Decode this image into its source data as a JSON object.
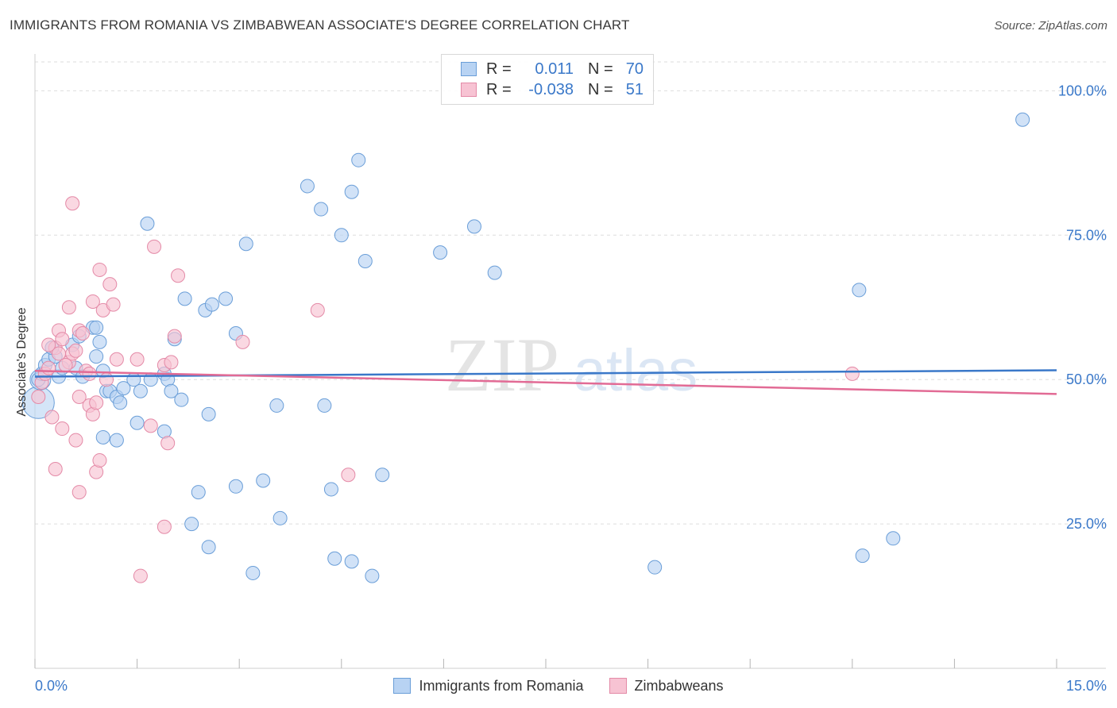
{
  "header": {
    "title": "IMMIGRANTS FROM ROMANIA VS ZIMBABWEAN ASSOCIATE'S DEGREE CORRELATION CHART",
    "source": "Source: ZipAtlas.com"
  },
  "colors": {
    "blue_fill": "#b8d3f3",
    "blue_stroke": "#6a9ed8",
    "blue_line": "#3a78c9",
    "pink_fill": "#f7c3d3",
    "pink_stroke": "#e48aa7",
    "pink_line": "#e26b95",
    "axis_text": "#3a78c9",
    "grid": "#dedede"
  },
  "stats": {
    "r_label": "R =",
    "n_label": "N =",
    "rows": [
      {
        "r": "0.011",
        "n": "70"
      },
      {
        "r": "-0.038",
        "n": "51"
      }
    ]
  },
  "watermark": {
    "zip": "ZIP",
    "atlas": "atlas"
  },
  "chart_data": {
    "type": "scatter",
    "title": "IMMIGRANTS FROM ROMANIA VS ZIMBABWEAN ASSOCIATE'S DEGREE CORRELATION CHART",
    "xlabel": "",
    "ylabel": "Associate's Degree",
    "xlim": [
      0,
      15
    ],
    "ylim": [
      0,
      105
    ],
    "x_tick_labels": [
      "0.0%",
      "15.0%"
    ],
    "y_ticks": [
      25,
      50,
      75,
      100
    ],
    "y_tick_labels": [
      "25.0%",
      "50.0%",
      "75.0%",
      "100.0%"
    ],
    "grid": true,
    "legend": [
      "Immigrants from Romania",
      "Zimbabweans"
    ],
    "series": [
      {
        "name": "Immigrants from Romania",
        "trend": {
          "x": [
            0,
            15
          ],
          "y": [
            50.5,
            51.6
          ]
        },
        "points": [
          [
            0.05,
            50.0
          ],
          [
            0.1,
            51.0
          ],
          [
            0.15,
            52.5
          ],
          [
            0.2,
            53.5
          ],
          [
            0.3,
            54.0
          ],
          [
            0.35,
            50.5
          ],
          [
            0.4,
            52.0
          ],
          [
            0.55,
            56.0
          ],
          [
            0.6,
            52.0
          ],
          [
            0.7,
            50.5
          ],
          [
            0.65,
            57.5
          ],
          [
            0.85,
            59.0
          ],
          [
            0.9,
            54.0
          ],
          [
            0.95,
            56.5
          ],
          [
            1.0,
            51.5
          ],
          [
            1.05,
            48.0
          ],
          [
            1.1,
            48.0
          ],
          [
            1.2,
            47.0
          ],
          [
            1.25,
            46.0
          ],
          [
            1.3,
            48.5
          ],
          [
            1.45,
            50.0
          ],
          [
            1.55,
            48.0
          ],
          [
            1.7,
            50.0
          ],
          [
            1.9,
            51.0
          ],
          [
            1.95,
            50.0
          ],
          [
            2.0,
            48.0
          ],
          [
            2.05,
            57.0
          ],
          [
            2.15,
            46.5
          ],
          [
            1.0,
            40.0
          ],
          [
            1.2,
            39.5
          ],
          [
            1.5,
            42.5
          ],
          [
            1.9,
            41.0
          ],
          [
            1.65,
            77.0
          ],
          [
            2.2,
            64.0
          ],
          [
            2.5,
            62.0
          ],
          [
            2.6,
            63.0
          ],
          [
            2.8,
            64.0
          ],
          [
            2.95,
            58.0
          ],
          [
            3.1,
            73.5
          ],
          [
            4.0,
            83.5
          ],
          [
            4.2,
            79.5
          ],
          [
            4.5,
            75.0
          ],
          [
            4.65,
            82.5
          ],
          [
            4.75,
            88.0
          ],
          [
            4.85,
            70.5
          ],
          [
            5.95,
            72.0
          ],
          [
            6.45,
            76.5
          ],
          [
            6.75,
            68.5
          ],
          [
            2.55,
            44.0
          ],
          [
            3.55,
            45.5
          ],
          [
            4.25,
            45.5
          ],
          [
            2.4,
            30.5
          ],
          [
            2.95,
            31.5
          ],
          [
            3.35,
            32.5
          ],
          [
            4.35,
            31.0
          ],
          [
            5.1,
            33.5
          ],
          [
            3.6,
            26.0
          ],
          [
            2.3,
            25.0
          ],
          [
            2.55,
            21.0
          ],
          [
            3.2,
            16.5
          ],
          [
            4.4,
            19.0
          ],
          [
            4.65,
            18.5
          ],
          [
            4.95,
            16.0
          ],
          [
            9.1,
            17.5
          ],
          [
            12.1,
            65.5
          ],
          [
            12.15,
            19.5
          ],
          [
            12.6,
            22.5
          ],
          [
            14.5,
            95.0
          ],
          [
            0.9,
            59.0
          ],
          [
            0.25,
            55.5
          ]
        ]
      },
      {
        "name": "Zimbabweans",
        "trend": {
          "x": [
            0,
            15
          ],
          "y": [
            51.5,
            47.5
          ]
        },
        "points": [
          [
            0.05,
            47.0
          ],
          [
            0.1,
            49.5
          ],
          [
            0.15,
            51.0
          ],
          [
            0.2,
            52.0
          ],
          [
            0.3,
            55.5
          ],
          [
            0.35,
            58.5
          ],
          [
            0.4,
            57.0
          ],
          [
            0.5,
            53.0
          ],
          [
            0.55,
            54.5
          ],
          [
            0.6,
            55.0
          ],
          [
            0.65,
            58.5
          ],
          [
            0.7,
            58.0
          ],
          [
            0.75,
            51.5
          ],
          [
            0.8,
            51.0
          ],
          [
            0.5,
            62.5
          ],
          [
            0.85,
            63.5
          ],
          [
            0.95,
            69.0
          ],
          [
            1.0,
            62.0
          ],
          [
            1.1,
            66.5
          ],
          [
            1.15,
            63.0
          ],
          [
            1.2,
            53.5
          ],
          [
            0.25,
            43.5
          ],
          [
            0.4,
            41.5
          ],
          [
            0.6,
            39.5
          ],
          [
            0.65,
            47.0
          ],
          [
            0.8,
            45.5
          ],
          [
            0.85,
            44.0
          ],
          [
            0.9,
            46.0
          ],
          [
            0.3,
            34.5
          ],
          [
            0.9,
            34.0
          ],
          [
            0.95,
            36.0
          ],
          [
            0.65,
            30.5
          ],
          [
            1.5,
            53.5
          ],
          [
            1.75,
            73.0
          ],
          [
            1.9,
            52.5
          ],
          [
            2.0,
            53.0
          ],
          [
            2.05,
            57.5
          ],
          [
            2.1,
            68.0
          ],
          [
            1.7,
            42.0
          ],
          [
            1.95,
            39.0
          ],
          [
            1.9,
            24.5
          ],
          [
            1.55,
            16.0
          ],
          [
            0.55,
            80.5
          ],
          [
            3.05,
            56.5
          ],
          [
            4.15,
            62.0
          ],
          [
            4.6,
            33.5
          ],
          [
            12.0,
            51.0
          ],
          [
            0.35,
            54.5
          ],
          [
            0.45,
            52.5
          ],
          [
            1.05,
            50.0
          ],
          [
            0.2,
            56.0
          ]
        ]
      }
    ]
  }
}
